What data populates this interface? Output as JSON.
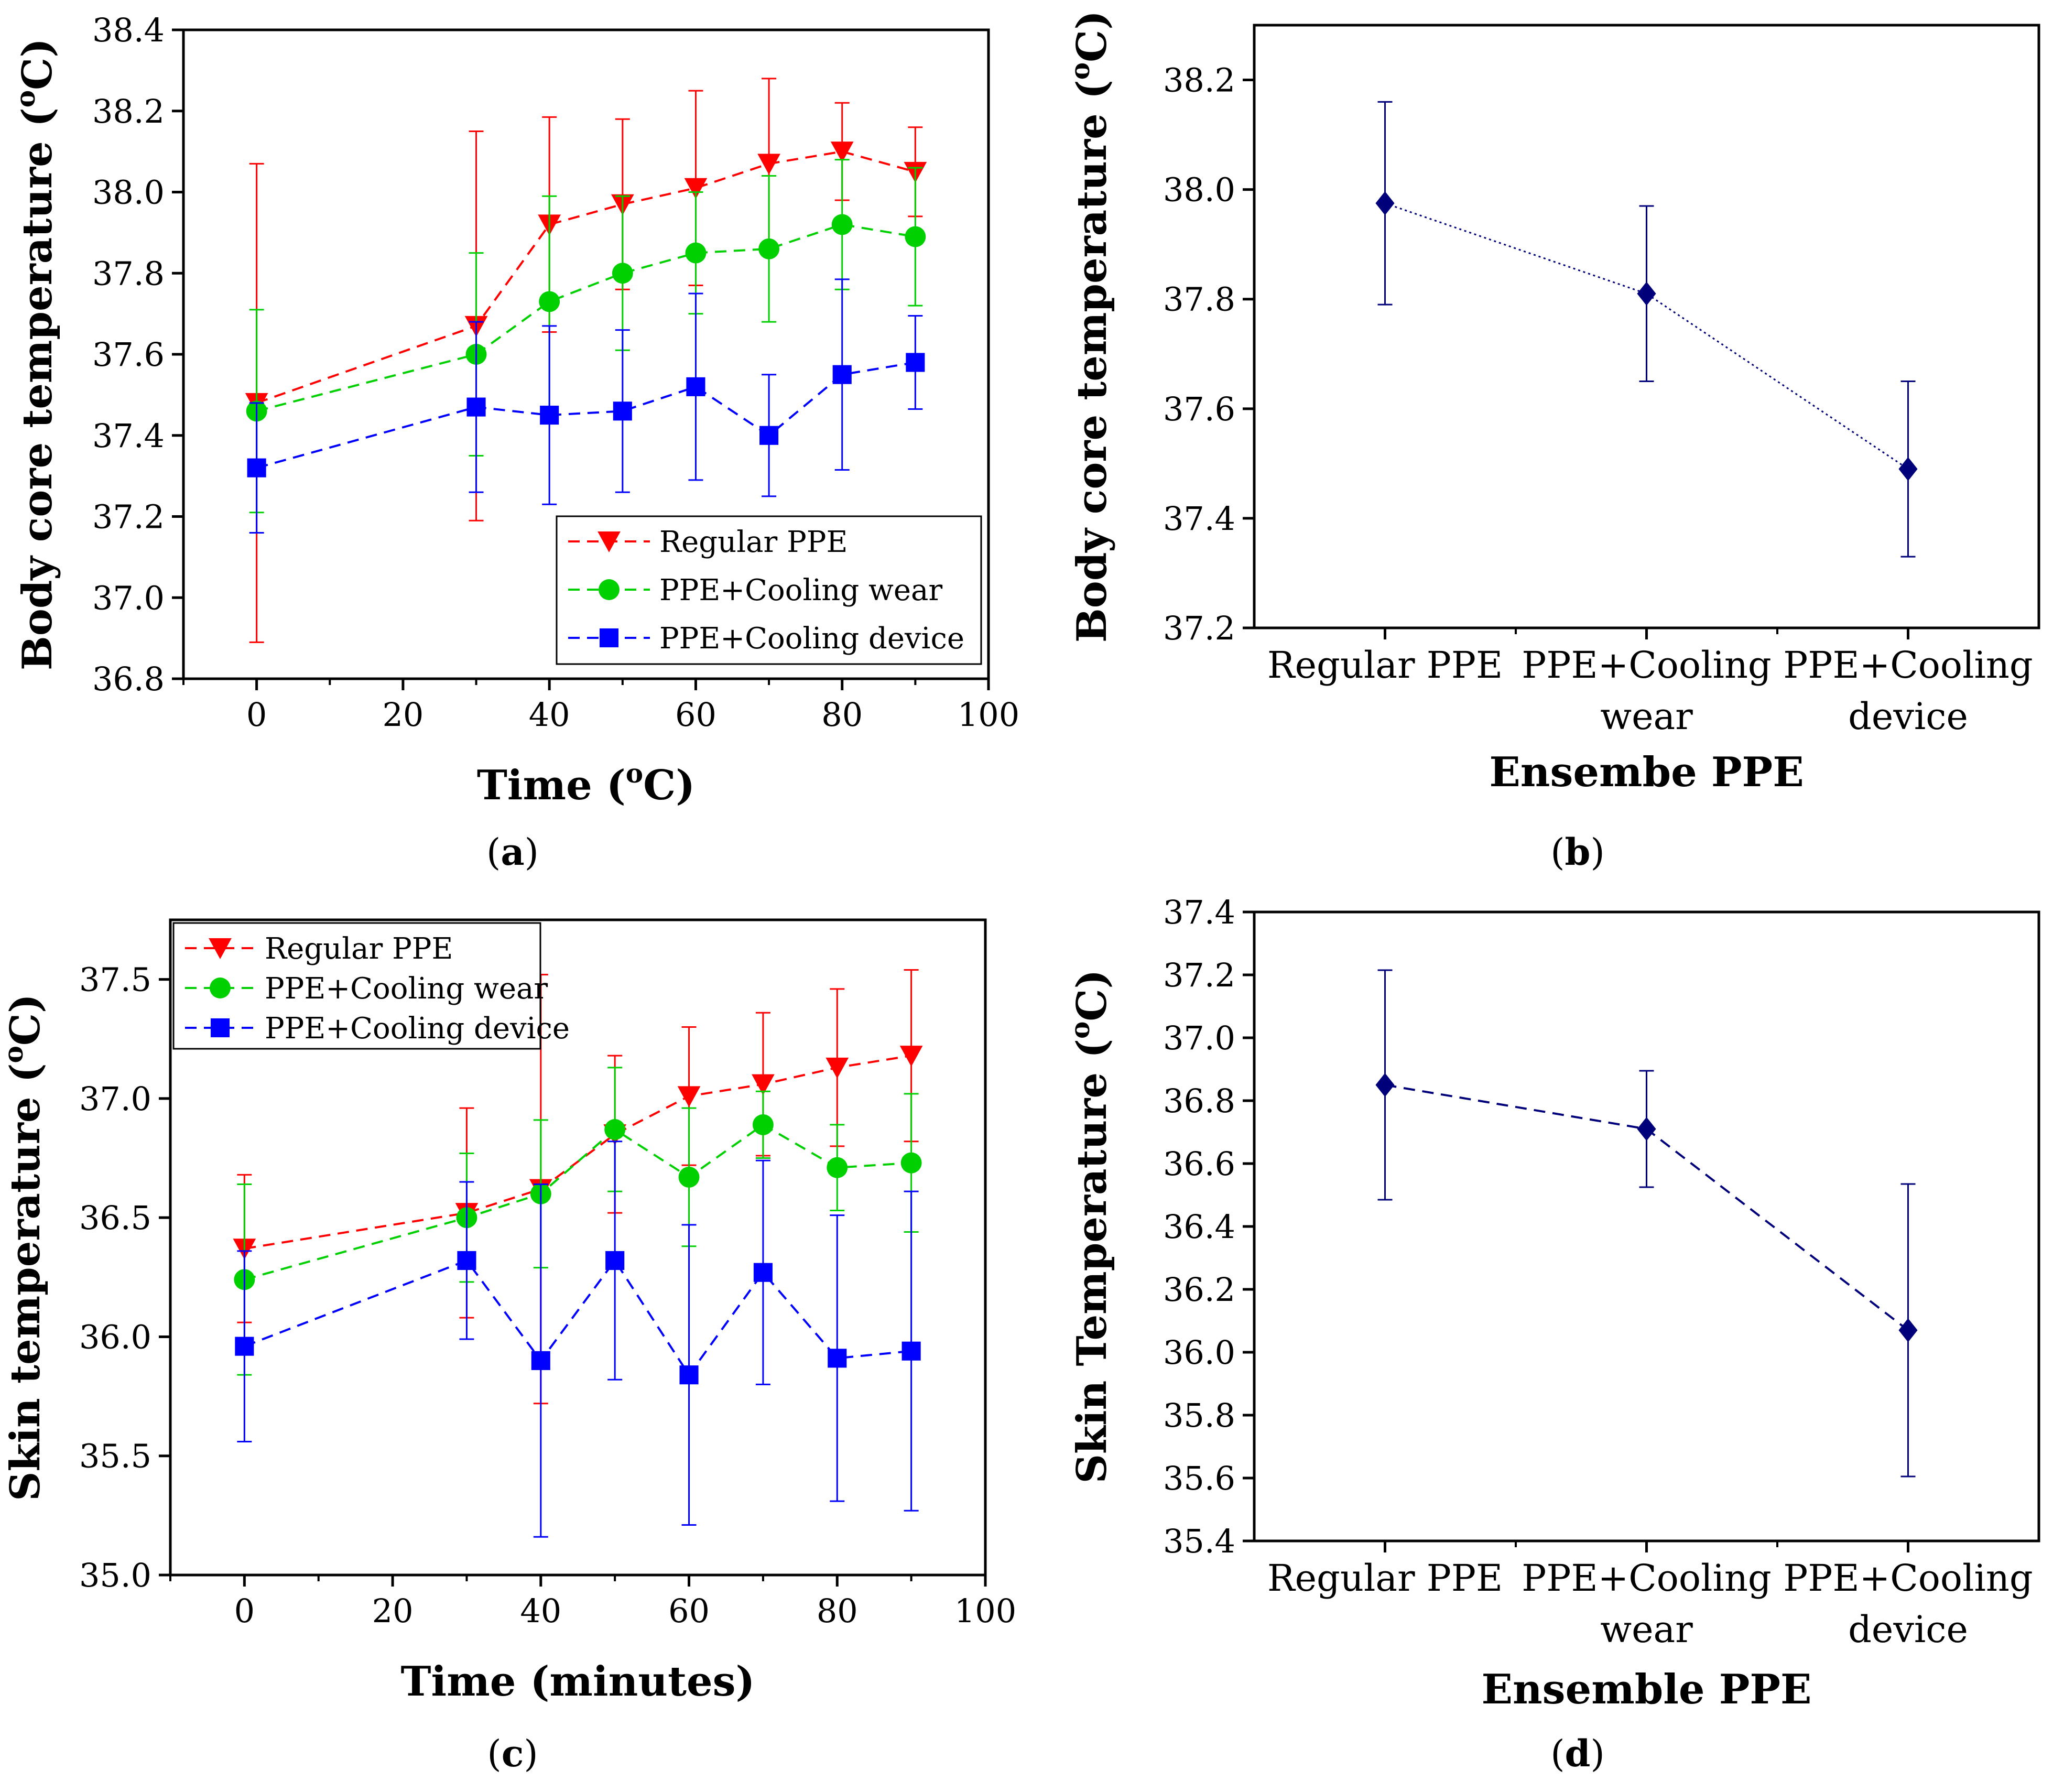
{
  "colors": {
    "regular": "#ff0000",
    "wear": "#00d000",
    "device": "#0000ff",
    "navy": "#00007a",
    "axis": "#000000"
  },
  "chart_data": [
    {
      "id": "a",
      "type": "line",
      "panel_label": "a",
      "xlabel": "Time (",
      "xlabel_sup": "o",
      "xlabel_tail": "C)",
      "ylabel": "Body core temperature (",
      "ylabel_sup": "o",
      "ylabel_tail": "C)",
      "xlim": [
        -10,
        100
      ],
      "ylim": [
        36.8,
        38.4
      ],
      "xticks": [
        0,
        20,
        40,
        60,
        80,
        100
      ],
      "xtick_labels": [
        "0",
        "20",
        "40",
        "60",
        "80",
        "100"
      ],
      "yticks": [
        36.8,
        37.0,
        37.2,
        37.4,
        37.6,
        37.8,
        38.0,
        38.2,
        38.4
      ],
      "ytick_labels": [
        "36.8",
        "37.0",
        "37.2",
        "37.4",
        "37.6",
        "37.8",
        "38.0",
        "38.2",
        "38.4"
      ],
      "legend_position": "bottom-right",
      "x": [
        0,
        30,
        40,
        50,
        60,
        70,
        80,
        90
      ],
      "series": [
        {
          "name": "Regular PPE",
          "color": "regular",
          "marker": "triangle-down",
          "values": [
            37.48,
            37.67,
            37.92,
            37.97,
            38.01,
            38.07,
            38.1,
            38.05
          ],
          "err": [
            0.59,
            0.48,
            0.265,
            0.21,
            0.24,
            0.21,
            0.12,
            0.11
          ]
        },
        {
          "name": "PPE+Cooling wear",
          "color": "wear",
          "marker": "circle",
          "values": [
            37.46,
            37.6,
            37.73,
            37.8,
            37.85,
            37.86,
            37.92,
            37.89
          ],
          "err": [
            0.25,
            0.25,
            0.26,
            0.19,
            0.15,
            0.18,
            0.16,
            0.17
          ]
        },
        {
          "name": "PPE+Cooling device",
          "color": "device",
          "marker": "square",
          "values": [
            37.32,
            37.47,
            37.45,
            37.46,
            37.52,
            37.4,
            37.55,
            37.58
          ],
          "err": [
            0.16,
            0.21,
            0.22,
            0.2,
            0.23,
            0.15,
            0.235,
            0.115
          ]
        }
      ]
    },
    {
      "id": "b",
      "type": "line",
      "panel_label": "b",
      "xlabel": "Ensembe PPE",
      "ylabel": "Body core temperature (",
      "ylabel_sup": "o",
      "ylabel_tail": "C)",
      "ylim": [
        37.2,
        38.3
      ],
      "yticks": [
        37.2,
        37.4,
        37.6,
        37.8,
        38.0,
        38.2
      ],
      "ytick_labels": [
        "37.2",
        "37.4",
        "37.6",
        "37.8",
        "38.0",
        "38.2"
      ],
      "categories": [
        [
          "Regular PPE"
        ],
        [
          "PPE+Cooling",
          "wear"
        ],
        [
          "PPE+Cooling",
          "device"
        ]
      ],
      "line_style": "dotted",
      "series": [
        {
          "name": "Ensemble PPE",
          "color": "navy",
          "marker": "diamond",
          "values": [
            37.975,
            37.81,
            37.49
          ],
          "err": [
            0.185,
            0.16,
            0.16
          ]
        }
      ]
    },
    {
      "id": "c",
      "type": "line",
      "panel_label": "c",
      "xlabel": "Time (minutes)",
      "ylabel": "Skin temperature (",
      "ylabel_sup": "o",
      "ylabel_tail": "C)",
      "xlim": [
        -10,
        100
      ],
      "ylim": [
        35.0,
        37.75
      ],
      "xticks": [
        0,
        20,
        40,
        60,
        80,
        100
      ],
      "xtick_labels": [
        "0",
        "20",
        "40",
        "60",
        "80",
        "100"
      ],
      "yticks": [
        35.0,
        35.5,
        36.0,
        36.5,
        37.0,
        37.5
      ],
      "ytick_labels": [
        "35.0",
        "35.5",
        "36.0",
        "36.5",
        "37.0",
        "37.5"
      ],
      "legend_position": "top-left",
      "x": [
        0,
        30,
        40,
        50,
        60,
        70,
        80,
        90
      ],
      "series": [
        {
          "name": "Regular PPE",
          "color": "regular",
          "marker": "triangle-down",
          "values": [
            36.37,
            36.52,
            36.62,
            36.85,
            37.01,
            37.06,
            37.13,
            37.18
          ],
          "err": [
            0.31,
            0.44,
            0.9,
            0.33,
            0.29,
            0.3,
            0.33,
            0.36
          ]
        },
        {
          "name": "PPE+Cooling wear",
          "color": "wear",
          "marker": "circle",
          "values": [
            36.24,
            36.5,
            36.6,
            36.87,
            36.67,
            36.89,
            36.71,
            36.73
          ],
          "err": [
            0.4,
            0.27,
            0.31,
            0.26,
            0.29,
            0.14,
            0.18,
            0.29
          ]
        },
        {
          "name": "PPE+Cooling device",
          "color": "device",
          "marker": "square",
          "values": [
            35.96,
            36.32,
            35.9,
            36.32,
            35.84,
            36.27,
            35.91,
            35.94
          ],
          "err": [
            0.4,
            0.33,
            0.74,
            0.5,
            0.63,
            0.47,
            0.6,
            0.67
          ]
        }
      ]
    },
    {
      "id": "d",
      "type": "line",
      "panel_label": "d",
      "xlabel": "Ensemble PPE",
      "ylabel": "Skin Temperature (",
      "ylabel_sup": "o",
      "ylabel_tail": "C)",
      "ylim": [
        35.4,
        37.4
      ],
      "yticks": [
        35.4,
        35.6,
        35.8,
        36.0,
        36.2,
        36.4,
        36.6,
        36.8,
        37.0,
        37.2,
        37.4
      ],
      "ytick_labels": [
        "35.4",
        "35.6",
        "35.8",
        "36.0",
        "36.2",
        "36.4",
        "36.6",
        "36.8",
        "37.0",
        "37.2",
        "37.4"
      ],
      "categories": [
        [
          "Regular PPE"
        ],
        [
          "PPE+Cooling",
          "wear"
        ],
        [
          "PPE+Cooling",
          "device"
        ]
      ],
      "line_style": "dashed",
      "series": [
        {
          "name": "Ensemble PPE",
          "color": "navy",
          "marker": "diamond",
          "values": [
            36.85,
            36.71,
            36.07
          ],
          "err": [
            0.365,
            0.185,
            0.465
          ]
        }
      ]
    }
  ]
}
